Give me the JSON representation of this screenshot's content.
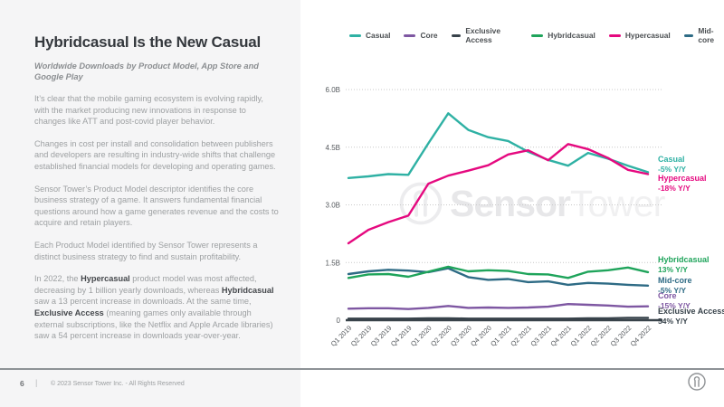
{
  "left_panel": {
    "title": "Hybridcasual Is the New Casual",
    "subtitle": "Worldwide Downloads by Product Model, App Store and Google Play",
    "paragraphs": [
      {
        "segments": [
          {
            "text": "It’s clear that the mobile gaming ecosystem is evolving rapidly, with the market producing new innovations in response to changes like ATT and post-covid player behavior.",
            "bold": false
          }
        ]
      },
      {
        "segments": [
          {
            "text": "Changes in cost per install and consolidation between publishers and developers are resulting in industry-wide shifts that challenge established financial models for developing and operating games.",
            "bold": false
          }
        ]
      },
      {
        "segments": [
          {
            "text": "Sensor Tower’s Product Model descriptor identifies the core business strategy of a game. It answers fundamental financial questions around how a game generates revenue and the costs to acquire and retain players.",
            "bold": false
          }
        ]
      },
      {
        "segments": [
          {
            "text": "Each Product Model identified by Sensor Tower represents a distinct business strategy to find and sustain profitability.",
            "bold": false
          }
        ]
      },
      {
        "segments": [
          {
            "text": "In 2022, the ",
            "bold": false
          },
          {
            "text": "Hypercasual",
            "bold": true
          },
          {
            "text": " product model was most affected, decreasing by 1 billion yearly downloads, whereas ",
            "bold": false
          },
          {
            "text": "Hybridcasual",
            "bold": true
          },
          {
            "text": " saw a 13 percent increase in downloads. At the same time, ",
            "bold": false
          },
          {
            "text": "Exclusive Access",
            "bold": true
          },
          {
            "text": " (meaning games only available through external subscriptions, like the Netflix and Apple Arcade libraries) saw a 54 percent increase in downloads year-over-year.",
            "bold": false
          }
        ]
      }
    ]
  },
  "footer": {
    "page_number": "6",
    "separator": "|",
    "copyright": "© 2023 Sensor Tower Inc. - All Rights Reserved"
  },
  "watermark": {
    "bold_part": "Sensor",
    "light_part": "Tower"
  },
  "chart_data": {
    "type": "line",
    "title": "Worldwide Downloads by Product Model, App Store and Google Play",
    "unit": "B",
    "ylim": [
      0,
      6.4
    ],
    "grid": "dotted-horizontal",
    "legend_position": "top",
    "y_ticks": [
      {
        "label": "6.0B",
        "value": 6
      },
      {
        "label": "4.5B",
        "value": 4.5
      },
      {
        "label": "3.0B",
        "value": 3
      },
      {
        "label": "1.5B",
        "value": 1.5
      },
      {
        "label": "0",
        "value": 0
      }
    ],
    "x_categories": [
      "Q1 2019",
      "Q2 2019",
      "Q3 2019",
      "Q4 2019",
      "Q1 2020",
      "Q2 2020",
      "Q3 2020",
      "Q4 2020",
      "Q1 2021",
      "Q2 2021",
      "Q3 2021",
      "Q4 2021",
      "Q1 2022",
      "Q2 2022",
      "Q3 2022",
      "Q4 2022"
    ],
    "series": [
      {
        "name": "Casual",
        "color": "#2FB1A4",
        "change_label": "-5% Y/Y",
        "values": [
          3.7,
          3.74,
          3.8,
          3.78,
          4.6,
          5.38,
          4.95,
          4.76,
          4.66,
          4.38,
          4.17,
          4.02,
          4.35,
          4.2,
          4.02,
          3.85
        ]
      },
      {
        "name": "Core",
        "color": "#7E57A2",
        "change_label": "-15% Y/Y",
        "values": [
          0.3,
          0.31,
          0.31,
          0.29,
          0.32,
          0.37,
          0.32,
          0.33,
          0.32,
          0.33,
          0.35,
          0.42,
          0.4,
          0.38,
          0.35,
          0.36
        ]
      },
      {
        "name": "Exclusive Access",
        "color": "#37424A",
        "change_label": "54% Y/Y",
        "values": [
          0.04,
          0.04,
          0.04,
          0.04,
          0.05,
          0.05,
          0.04,
          0.04,
          0.04,
          0.04,
          0.04,
          0.04,
          0.05,
          0.05,
          0.06,
          0.06
        ]
      },
      {
        "name": "Hybridcasual",
        "color": "#1FA45B",
        "change_label": "13% Y/Y",
        "values": [
          1.1,
          1.19,
          1.2,
          1.13,
          1.26,
          1.39,
          1.27,
          1.3,
          1.28,
          1.2,
          1.19,
          1.1,
          1.26,
          1.3,
          1.37,
          1.25
        ]
      },
      {
        "name": "Hypercasual",
        "color": "#E5097F",
        "change_label": "-18% Y/Y",
        "values": [
          2.0,
          2.35,
          2.55,
          2.72,
          3.55,
          3.76,
          3.89,
          4.03,
          4.31,
          4.42,
          4.16,
          4.58,
          4.45,
          4.22,
          3.91,
          3.8
        ]
      },
      {
        "name": "Mid-core",
        "color": "#2E6B85",
        "change_label": "-5% Y/Y",
        "values": [
          1.2,
          1.27,
          1.31,
          1.29,
          1.25,
          1.35,
          1.12,
          1.05,
          1.07,
          0.99,
          1.01,
          0.92,
          0.97,
          0.95,
          0.92,
          0.9
        ]
      }
    ]
  }
}
